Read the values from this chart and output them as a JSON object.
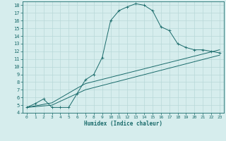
{
  "xlabel": "Humidex (Indice chaleur)",
  "bg_color": "#d6eded",
  "grid_color": "#b8d8d8",
  "line_color": "#1a6b6b",
  "xlim": [
    -0.5,
    23.5
  ],
  "ylim": [
    4,
    18.5
  ],
  "xticks": [
    0,
    1,
    2,
    3,
    4,
    5,
    6,
    7,
    8,
    9,
    10,
    11,
    12,
    13,
    14,
    15,
    16,
    17,
    18,
    19,
    20,
    21,
    22,
    23
  ],
  "yticks": [
    4,
    5,
    6,
    7,
    8,
    9,
    10,
    11,
    12,
    13,
    14,
    15,
    16,
    17,
    18
  ],
  "curve1_x": [
    0,
    1,
    2,
    3,
    4,
    5,
    6,
    7,
    8,
    9,
    10,
    11,
    12,
    13,
    14,
    15,
    16,
    17,
    18,
    19,
    20,
    21,
    22,
    23
  ],
  "curve1_y": [
    4.7,
    5.2,
    5.8,
    4.7,
    4.7,
    4.7,
    6.5,
    8.3,
    9.0,
    11.2,
    16.0,
    17.3,
    17.8,
    18.2,
    18.0,
    17.3,
    15.2,
    14.7,
    13.0,
    12.5,
    12.2,
    12.2,
    12.0,
    11.8
  ],
  "curve2_x": [
    0,
    3,
    6,
    7,
    23
  ],
  "curve2_y": [
    4.7,
    5.3,
    7.2,
    7.8,
    12.2
  ],
  "curve3_x": [
    0,
    3,
    6,
    7,
    23
  ],
  "curve3_y": [
    4.7,
    5.0,
    6.5,
    7.0,
    11.5
  ]
}
